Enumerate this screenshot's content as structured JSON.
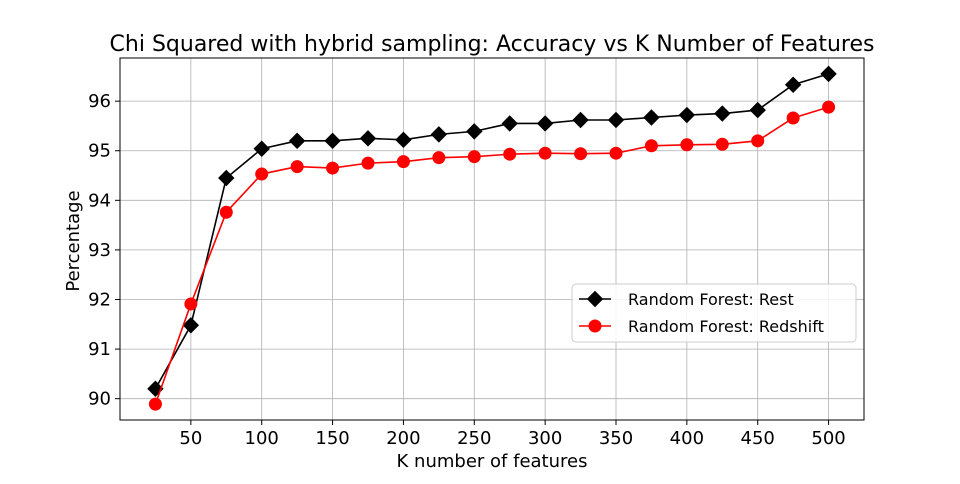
{
  "chart_data": {
    "type": "line",
    "title": "Chi Squared with hybrid sampling: Accuracy vs K Number of Features",
    "xlabel": "K number of features",
    "ylabel": "Percentage",
    "xlim": [
      0,
      525
    ],
    "ylim": [
      89.57,
      96.87
    ],
    "xticks": [
      50,
      100,
      150,
      200,
      250,
      300,
      350,
      400,
      450,
      500
    ],
    "yticks": [
      90,
      91,
      92,
      93,
      94,
      95,
      96
    ],
    "grid": true,
    "legend_position": "center-right",
    "x": [
      25,
      50,
      75,
      100,
      125,
      150,
      175,
      200,
      225,
      250,
      275,
      300,
      325,
      350,
      375,
      400,
      425,
      450,
      475,
      500
    ],
    "series": [
      {
        "name": "Random Forest: Rest",
        "color": "#000000",
        "marker": "diamond",
        "values": [
          90.2,
          91.48,
          94.45,
          95.04,
          95.2,
          95.2,
          95.25,
          95.22,
          95.33,
          95.39,
          95.55,
          95.55,
          95.62,
          95.62,
          95.67,
          95.72,
          95.75,
          95.82,
          96.33,
          96.55
        ]
      },
      {
        "name": "Random Forest: Redshift",
        "color": "#ff0000",
        "marker": "circle",
        "values": [
          89.89,
          91.91,
          93.76,
          94.53,
          94.68,
          94.65,
          94.75,
          94.78,
          94.86,
          94.88,
          94.93,
          94.95,
          94.94,
          94.95,
          95.1,
          95.12,
          95.13,
          95.2,
          95.66,
          95.88
        ]
      }
    ]
  }
}
